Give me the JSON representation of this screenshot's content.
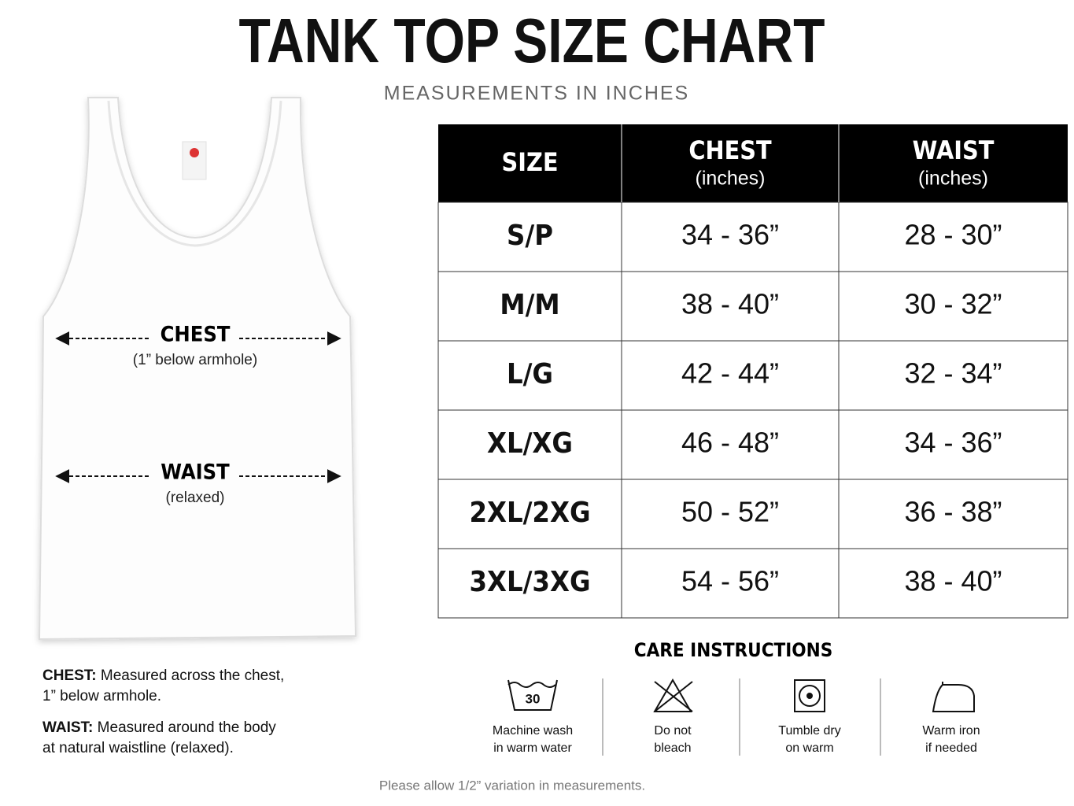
{
  "header": {
    "title": "TANK TOP SIZE CHART",
    "subtitle": "MEASUREMENTS IN INCHES"
  },
  "diagram": {
    "chest": {
      "label": "CHEST",
      "note": "(1” below armhole)"
    },
    "waist": {
      "label": "WAIST",
      "note": "(relaxed)"
    }
  },
  "table": {
    "headers": [
      {
        "label": "SIZE"
      },
      {
        "label": "CHEST",
        "sub": "(inches)"
      },
      {
        "label": "WAIST",
        "sub": "(inches)"
      }
    ],
    "rows": [
      [
        "S/P",
        "34 - 36”",
        "28 - 30”"
      ],
      [
        "M/M",
        "38 - 40”",
        "30 - 32”"
      ],
      [
        "L/G",
        "42 - 44”",
        "32 - 34”"
      ],
      [
        "XL/XG",
        "46 - 48”",
        "34 - 36”"
      ],
      [
        "2XL/2XG",
        "50 - 52”",
        "36 - 38”"
      ],
      [
        "3XL/3XG",
        "54 - 56”",
        "38 - 40”"
      ]
    ]
  },
  "notes": [
    {
      "term": "CHEST:",
      "lines": [
        "Measured across the chest,",
        "1” below armhole."
      ]
    },
    {
      "term": "WAIST:",
      "lines": [
        "Measured around the body",
        "at natural waistline (relaxed)."
      ]
    }
  ],
  "care": {
    "title": "CARE INSTRUCTIONS",
    "wash_temp": "30",
    "items": [
      {
        "lines": [
          "Machine wash",
          "in warm water"
        ]
      },
      {
        "lines": [
          "Do not",
          "bleach"
        ]
      },
      {
        "lines": [
          "Tumble dry",
          "on warm"
        ]
      },
      {
        "lines": [
          "Warm iron",
          "if needed"
        ]
      }
    ]
  },
  "footer": "Please allow 1/2” variation in measurements."
}
